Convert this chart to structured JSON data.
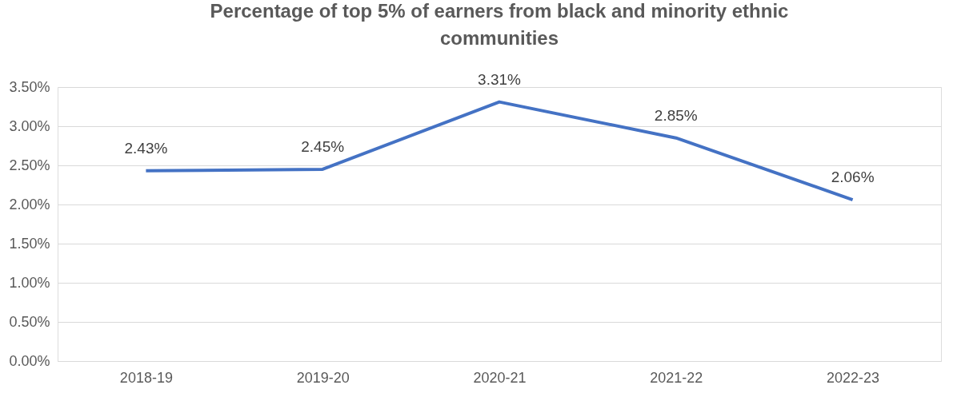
{
  "chart_data": {
    "type": "line",
    "title": "Percentage of top 5% of earners from black and minority ethnic communities",
    "categories": [
      "2018-19",
      "2019-20",
      "2020-21",
      "2021-22",
      "2022-23"
    ],
    "series": [
      {
        "color": "#4472c4",
        "values": [
          2.43,
          2.45,
          3.31,
          2.85,
          2.06
        ],
        "value_labels": [
          "2.43%",
          "2.45%",
          "3.31%",
          "2.85%",
          "2.06%"
        ]
      }
    ],
    "ylim": [
      0,
      3.5
    ],
    "yticks": [
      {
        "value": 0,
        "label": "0.00%"
      },
      {
        "value": 0.5,
        "label": "0.50%"
      },
      {
        "value": 1,
        "label": "1.00%"
      },
      {
        "value": 1.5,
        "label": "1.50%"
      },
      {
        "value": 2,
        "label": "2.00%"
      },
      {
        "value": 2.5,
        "label": "2.50%"
      },
      {
        "value": 3,
        "label": "3.00%"
      },
      {
        "value": 3.5,
        "label": "3.50%"
      }
    ],
    "grid": "y",
    "marker": "none",
    "line_style": "solid"
  }
}
